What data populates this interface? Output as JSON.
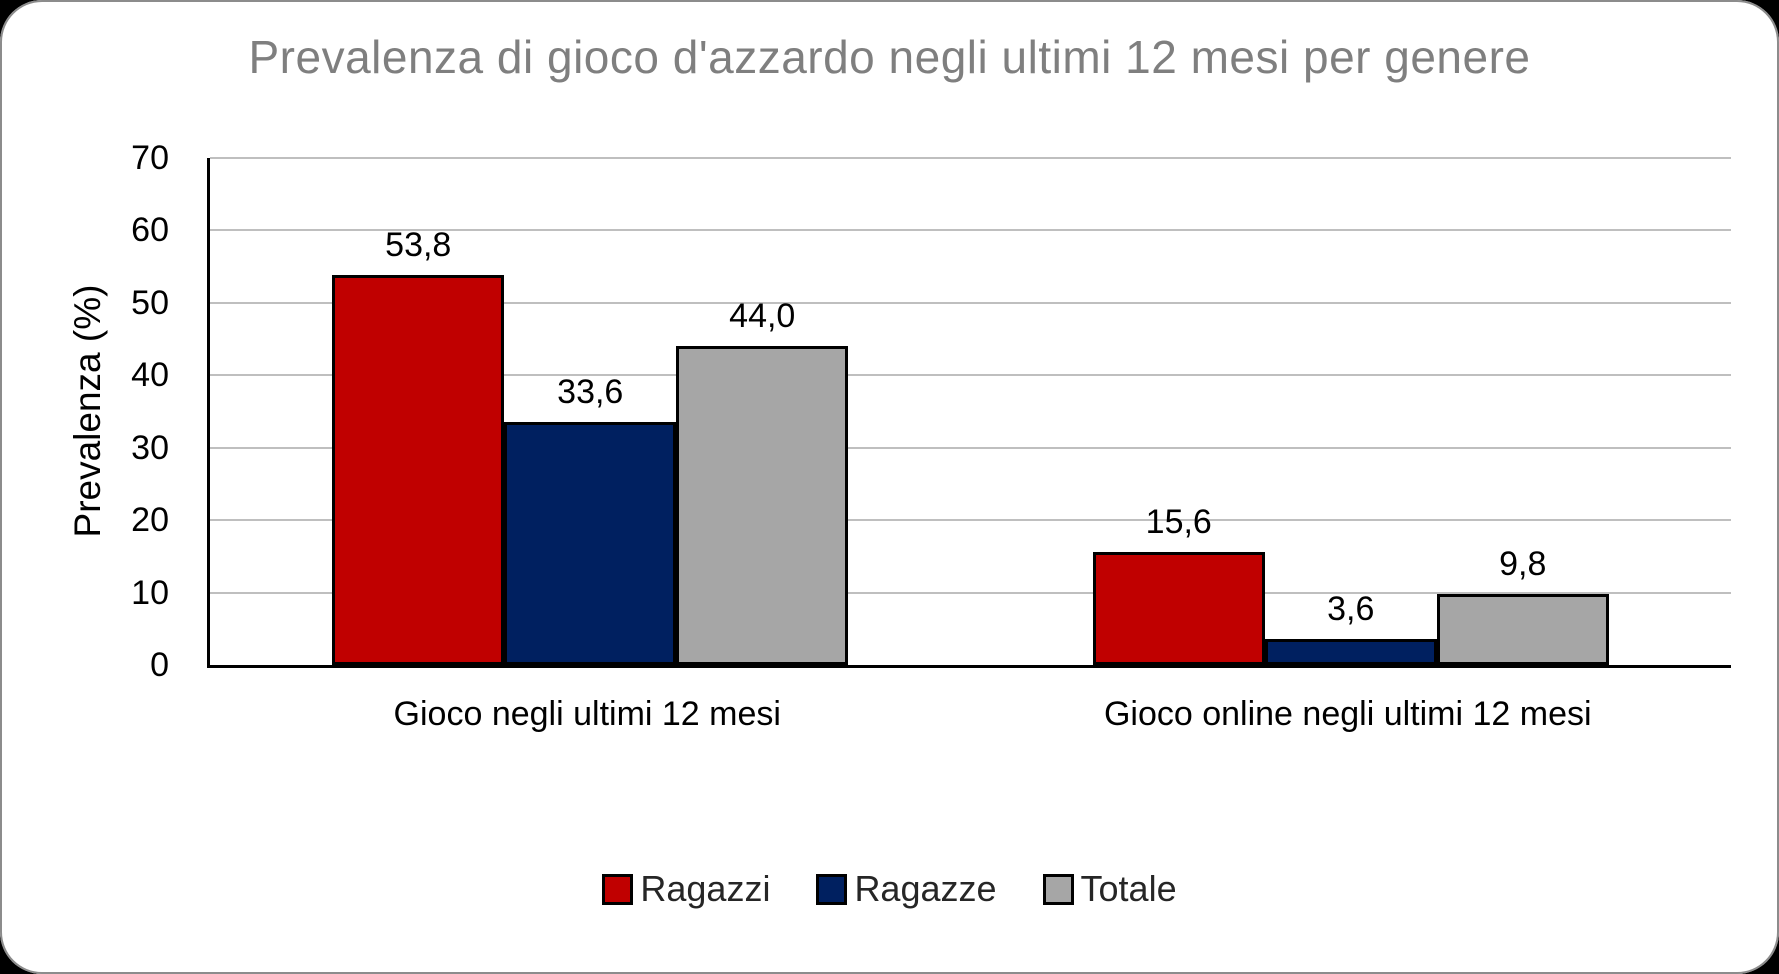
{
  "chart_data": {
    "type": "bar",
    "title": "Prevalenza di gioco d'azzardo negli ultimi 12 mesi per genere",
    "ylabel": "Prevalenza (%)",
    "xlabel": "",
    "ylim": [
      0,
      70
    ],
    "ytick_step": 10,
    "yticks": [
      "0",
      "10",
      "20",
      "30",
      "40",
      "50",
      "60",
      "70"
    ],
    "grid": true,
    "legend_position": "bottom",
    "categories": [
      "Gioco negli ultimi 12 mesi",
      "Gioco online negli ultimi 12 mesi"
    ],
    "series": [
      {
        "name": "Ragazzi",
        "color": "#C00000",
        "values": [
          53.8,
          15.6
        ],
        "labels": [
          "53,8",
          "15,6"
        ]
      },
      {
        "name": "Ragazze",
        "color": "#002060",
        "values": [
          33.6,
          3.6
        ],
        "labels": [
          "33,6",
          "3,6"
        ]
      },
      {
        "name": "Totale",
        "color": "#A6A6A6",
        "values": [
          44.0,
          9.8
        ],
        "labels": [
          "44,0",
          "9,8"
        ]
      }
    ]
  },
  "colors": {
    "title": "#7F7F7F",
    "gridline": "#BFBFBF",
    "axis": "#000000",
    "background": "#FFFFFF",
    "page_background": "#000000"
  }
}
